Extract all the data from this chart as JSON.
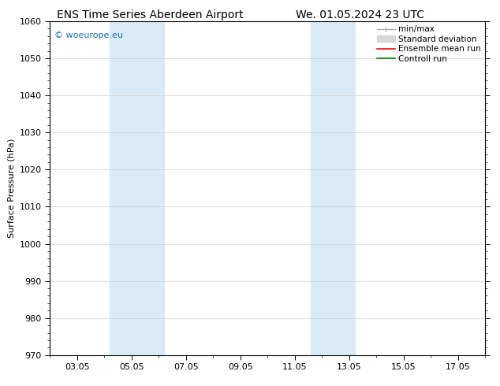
{
  "title_left": "ENS Time Series Aberdeen Airport",
  "title_right": "We. 01.05.2024 23 UTC",
  "ylabel": "Surface Pressure (hPa)",
  "ylim": [
    970,
    1060
  ],
  "yticks": [
    970,
    980,
    990,
    1000,
    1010,
    1020,
    1030,
    1040,
    1050,
    1060
  ],
  "x_min": 2,
  "x_max": 18,
  "xtick_labels": [
    "03.05",
    "05.05",
    "07.05",
    "09.05",
    "11.05",
    "13.05",
    "15.05",
    "17.05"
  ],
  "xtick_positions": [
    3,
    5,
    7,
    9,
    11,
    13,
    15,
    17
  ],
  "shaded_bands": [
    {
      "x_start": 4.2,
      "x_end": 6.2
    },
    {
      "x_start": 11.6,
      "x_end": 13.2
    }
  ],
  "shaded_color": "#daeaf7",
  "watermark_text": "© woeurope.eu",
  "watermark_color": "#1a6eb5",
  "background_color": "#ffffff",
  "grid_color": "#cccccc",
  "title_fontsize": 10,
  "axis_fontsize": 8,
  "watermark_fontsize": 8,
  "legend_fontsize": 7.5
}
